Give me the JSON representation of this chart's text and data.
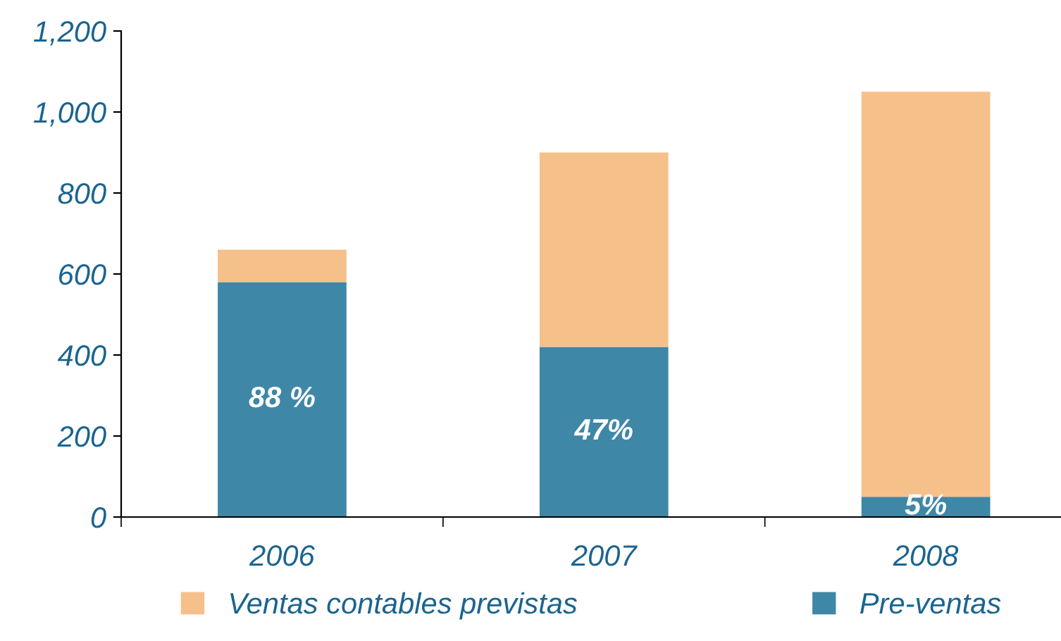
{
  "chart_data": {
    "type": "bar",
    "stacked": true,
    "categories": [
      "2006",
      "2007",
      "2008"
    ],
    "series": [
      {
        "name": "Pre-ventas",
        "color": "#3f87a6",
        "values": [
          580,
          420,
          50
        ]
      },
      {
        "name": "Ventas contables previstas",
        "color": "#f5c08a",
        "values": [
          80,
          480,
          1000
        ]
      }
    ],
    "ylim": [
      0,
      1200
    ],
    "yticks": [
      0,
      200,
      400,
      600,
      800,
      {
        "value": 1000,
        "label": "1,000"
      },
      {
        "value": 1200,
        "label": "1,200"
      }
    ],
    "annotations": [
      "88 %",
      "47%",
      "5%"
    ],
    "grid": false,
    "legend": "bottom"
  }
}
